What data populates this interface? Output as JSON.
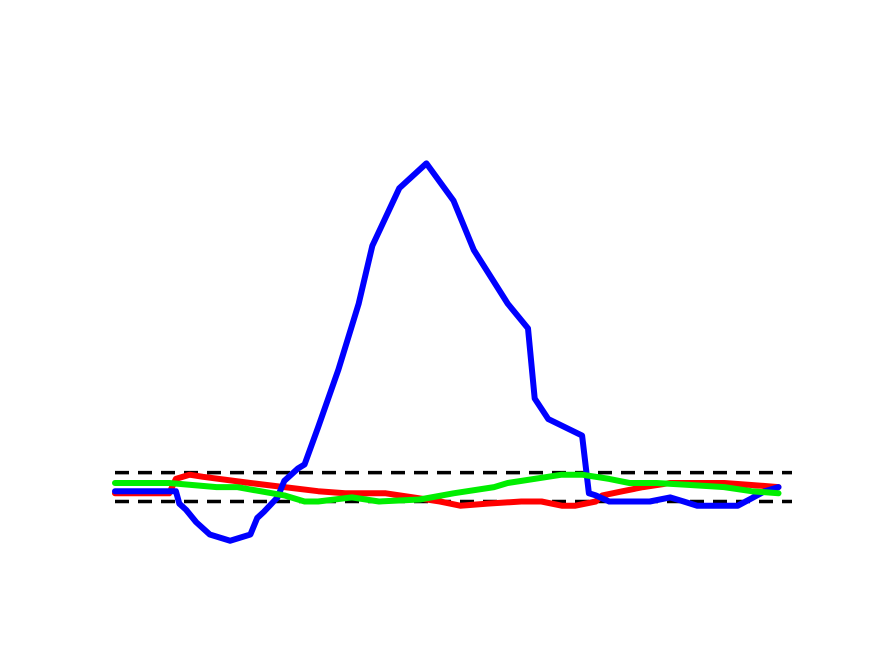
{
  "chart_data": {
    "type": "line",
    "title": "",
    "xlabel": "",
    "ylabel": "",
    "axes_visible": false,
    "grid": false,
    "legend": "none",
    "xlim": [
      0,
      100
    ],
    "ylim": [
      -0.2,
      1.1
    ],
    "reference_lines": [
      {
        "y": 0.07,
        "style": "dashed",
        "color": "#000000"
      },
      {
        "y": 0.0,
        "style": "dashed",
        "color": "#000000"
      }
    ],
    "series": [
      {
        "color": "#ff0000",
        "points": [
          [
            0,
            0.02
          ],
          [
            8,
            0.02
          ],
          [
            9,
            0.055
          ],
          [
            11,
            0.065
          ],
          [
            13,
            0.06
          ],
          [
            20,
            0.045
          ],
          [
            30,
            0.025
          ],
          [
            34,
            0.02
          ],
          [
            40,
            0.02
          ],
          [
            44,
            0.01
          ],
          [
            48,
            0.0
          ],
          [
            51,
            -0.01
          ],
          [
            55,
            -0.005
          ],
          [
            60,
            0.0
          ],
          [
            63,
            0.0
          ],
          [
            66,
            -0.01
          ],
          [
            68,
            -0.01
          ],
          [
            71,
            0.0
          ],
          [
            72,
            0.015
          ],
          [
            75,
            0.025
          ],
          [
            78,
            0.035
          ],
          [
            82,
            0.045
          ],
          [
            90,
            0.045
          ],
          [
            94,
            0.04
          ],
          [
            98,
            0.035
          ]
        ]
      },
      {
        "color": "#0000ff",
        "points": [
          [
            0,
            0.025
          ],
          [
            9,
            0.025
          ],
          [
            9.5,
            -0.005
          ],
          [
            10.5,
            -0.02
          ],
          [
            12,
            -0.05
          ],
          [
            14,
            -0.08
          ],
          [
            17,
            -0.095
          ],
          [
            20,
            -0.08
          ],
          [
            21,
            -0.04
          ],
          [
            22,
            -0.025
          ],
          [
            24,
            0.01
          ],
          [
            25,
            0.05
          ],
          [
            27,
            0.08
          ],
          [
            28,
            0.09
          ],
          [
            30,
            0.18
          ],
          [
            33,
            0.32
          ],
          [
            36,
            0.48
          ],
          [
            38,
            0.62
          ],
          [
            42,
            0.76
          ],
          [
            46,
            0.82
          ],
          [
            50,
            0.73
          ],
          [
            53,
            0.61
          ],
          [
            58,
            0.48
          ],
          [
            61,
            0.42
          ],
          [
            62,
            0.25
          ],
          [
            64,
            0.2
          ],
          [
            69,
            0.16
          ],
          [
            70,
            0.02
          ],
          [
            71,
            0.015
          ],
          [
            73,
            0.0
          ],
          [
            79,
            0.0
          ],
          [
            82,
            0.01
          ],
          [
            84,
            0.0
          ],
          [
            86,
            -0.01
          ],
          [
            92,
            -0.01
          ],
          [
            96,
            0.025
          ],
          [
            98,
            0.035
          ]
        ]
      },
      {
        "color": "#00ee00",
        "points": [
          [
            0,
            0.045
          ],
          [
            8,
            0.045
          ],
          [
            15,
            0.035
          ],
          [
            18,
            0.035
          ],
          [
            25,
            0.015
          ],
          [
            28,
            0.0
          ],
          [
            30,
            0.0
          ],
          [
            35,
            0.01
          ],
          [
            39,
            0.0
          ],
          [
            45,
            0.005
          ],
          [
            50,
            0.02
          ],
          [
            56,
            0.035
          ],
          [
            58,
            0.045
          ],
          [
            66,
            0.065
          ],
          [
            69,
            0.065
          ],
          [
            73,
            0.055
          ],
          [
            76,
            0.045
          ],
          [
            80,
            0.045
          ],
          [
            85,
            0.04
          ],
          [
            90,
            0.035
          ],
          [
            94,
            0.025
          ],
          [
            98,
            0.02
          ]
        ]
      }
    ]
  }
}
